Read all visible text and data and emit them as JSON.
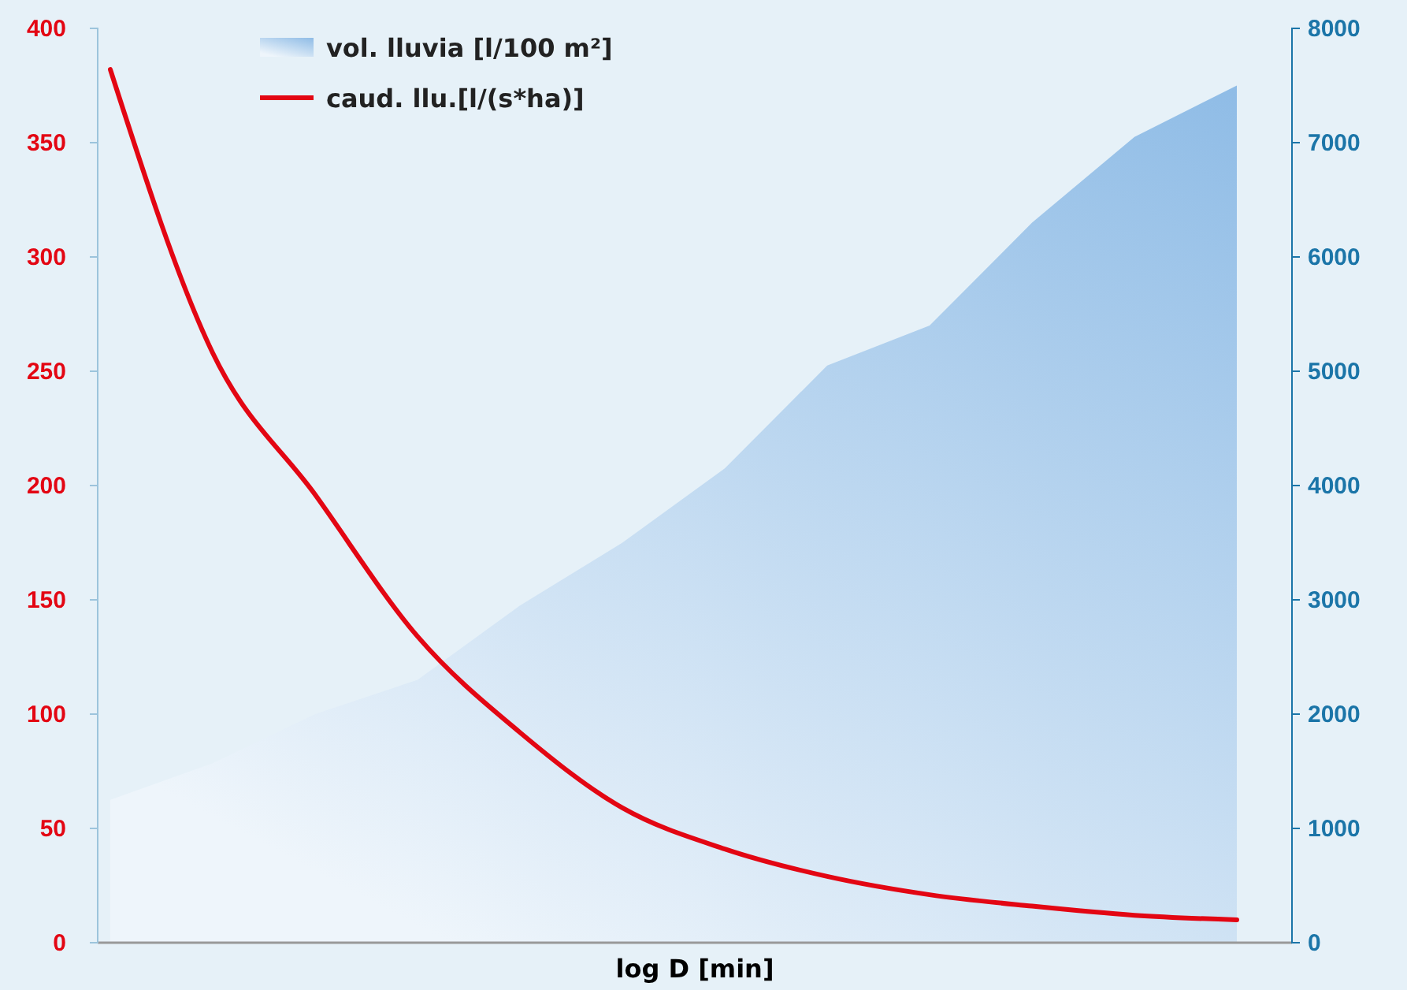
{
  "chart_data": {
    "type": "line",
    "xlabel": "log D [min]",
    "categories": [
      null,
      null,
      null,
      null,
      null,
      null,
      null,
      null,
      null,
      null,
      null,
      null
    ],
    "ylim": [
      0,
      400
    ],
    "yticks": [
      0,
      50,
      100,
      150,
      200,
      250,
      300,
      350,
      400
    ],
    "y2lim": [
      0,
      8000
    ],
    "y2ticks": [
      0,
      1000,
      2000,
      3000,
      4000,
      5000,
      6000,
      7000,
      8000
    ],
    "legend": "top left",
    "grid": false,
    "series": [
      {
        "name": "vol. lluvia [l/100 m²]",
        "type": "area",
        "axis": "y2",
        "color": "#8fbce6",
        "values": [
          1250,
          1570,
          2000,
          2300,
          2950,
          3500,
          4150,
          5050,
          5400,
          6300,
          7050,
          7500
        ]
      },
      {
        "name": "caud. llu.[l/(s*ha)]",
        "axis": "y",
        "color": "#e30613",
        "values": [
          382,
          258,
          196,
          134,
          92,
          59,
          41,
          29,
          21,
          16,
          12,
          10
        ]
      }
    ]
  }
}
